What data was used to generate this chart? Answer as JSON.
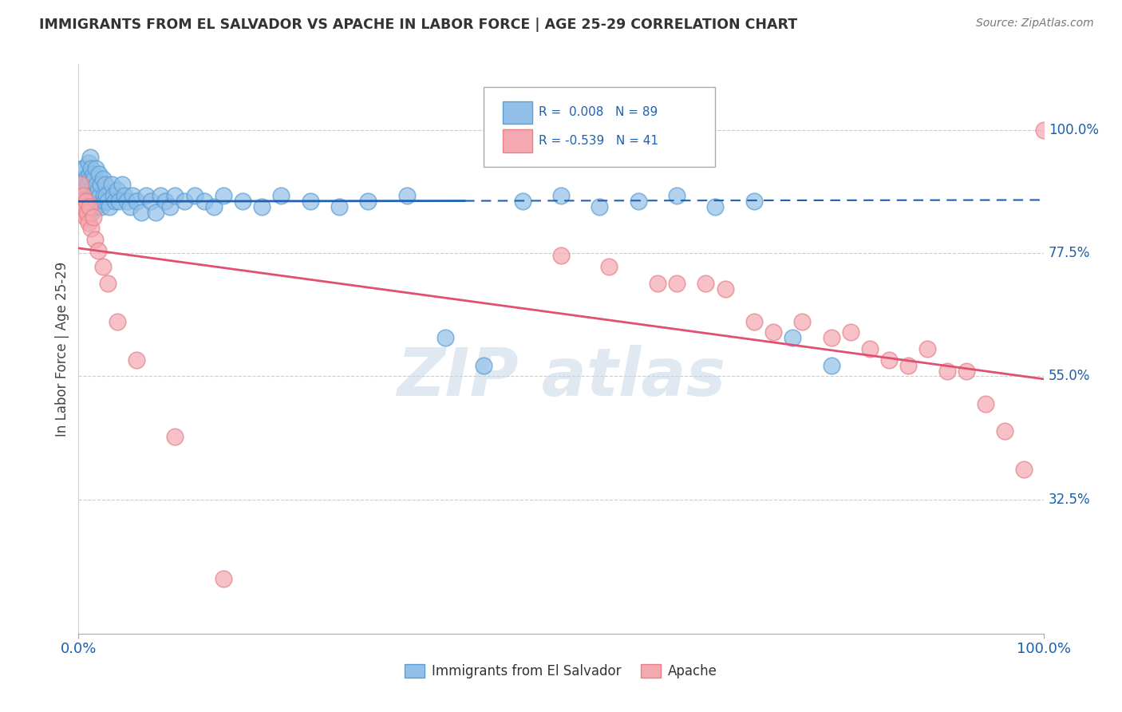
{
  "title": "IMMIGRANTS FROM EL SALVADOR VS APACHE IN LABOR FORCE | AGE 25-29 CORRELATION CHART",
  "source": "Source: ZipAtlas.com",
  "ylabel": "In Labor Force | Age 25-29",
  "xlim": [
    0.0,
    1.0
  ],
  "ylim": [
    0.08,
    1.12
  ],
  "yticks": [
    0.325,
    0.55,
    0.775,
    1.0
  ],
  "ytick_labels": [
    "32.5%",
    "55.0%",
    "77.5%",
    "100.0%"
  ],
  "xtick_labels": [
    "0.0%",
    "100.0%"
  ],
  "legend_blue_text": "R =  0.008   N = 89",
  "legend_pink_text": "R = -0.539   N = 41",
  "legend_label_blue": "Immigrants from El Salvador",
  "legend_label_pink": "Apache",
  "blue_color": "#92c0e8",
  "pink_color": "#f4a8b0",
  "blue_edge_color": "#5a9fd4",
  "pink_edge_color": "#e8808a",
  "blue_line_color": "#2060b0",
  "pink_line_color": "#e05070",
  "background_color": "#ffffff",
  "blue_x": [
    0.002,
    0.003,
    0.004,
    0.004,
    0.005,
    0.005,
    0.006,
    0.006,
    0.007,
    0.007,
    0.008,
    0.008,
    0.009,
    0.009,
    0.01,
    0.01,
    0.01,
    0.011,
    0.011,
    0.012,
    0.012,
    0.013,
    0.013,
    0.014,
    0.014,
    0.015,
    0.015,
    0.016,
    0.016,
    0.017,
    0.017,
    0.018,
    0.018,
    0.019,
    0.019,
    0.02,
    0.021,
    0.022,
    0.023,
    0.024,
    0.025,
    0.026,
    0.027,
    0.028,
    0.029,
    0.03,
    0.032,
    0.034,
    0.036,
    0.038,
    0.04,
    0.042,
    0.045,
    0.048,
    0.05,
    0.053,
    0.056,
    0.06,
    0.065,
    0.07,
    0.075,
    0.08,
    0.085,
    0.09,
    0.095,
    0.1,
    0.11,
    0.12,
    0.13,
    0.14,
    0.15,
    0.17,
    0.19,
    0.21,
    0.24,
    0.27,
    0.3,
    0.34,
    0.38,
    0.42,
    0.46,
    0.5,
    0.54,
    0.58,
    0.62,
    0.66,
    0.7,
    0.74,
    0.78
  ],
  "blue_y": [
    0.88,
    0.9,
    0.93,
    0.86,
    0.91,
    0.87,
    0.89,
    0.93,
    0.88,
    0.85,
    0.91,
    0.87,
    0.9,
    0.86,
    0.94,
    0.9,
    0.86,
    0.92,
    0.88,
    0.95,
    0.91,
    0.87,
    0.93,
    0.89,
    0.85,
    0.92,
    0.88,
    0.86,
    0.91,
    0.89,
    0.87,
    0.93,
    0.88,
    0.9,
    0.86,
    0.89,
    0.92,
    0.88,
    0.9,
    0.86,
    0.91,
    0.88,
    0.87,
    0.9,
    0.88,
    0.87,
    0.86,
    0.9,
    0.88,
    0.87,
    0.89,
    0.87,
    0.9,
    0.88,
    0.87,
    0.86,
    0.88,
    0.87,
    0.85,
    0.88,
    0.87,
    0.85,
    0.88,
    0.87,
    0.86,
    0.88,
    0.87,
    0.88,
    0.87,
    0.86,
    0.88,
    0.87,
    0.86,
    0.88,
    0.87,
    0.86,
    0.87,
    0.88,
    0.62,
    0.57,
    0.87,
    0.88,
    0.86,
    0.87,
    0.88,
    0.86,
    0.87,
    0.62,
    0.57
  ],
  "pink_x": [
    0.002,
    0.003,
    0.004,
    0.005,
    0.006,
    0.007,
    0.008,
    0.009,
    0.01,
    0.011,
    0.013,
    0.015,
    0.017,
    0.02,
    0.025,
    0.03,
    0.04,
    0.06,
    0.1,
    0.15,
    0.5,
    0.55,
    0.6,
    0.62,
    0.65,
    0.67,
    0.7,
    0.72,
    0.75,
    0.78,
    0.8,
    0.82,
    0.84,
    0.86,
    0.88,
    0.9,
    0.92,
    0.94,
    0.96,
    0.98,
    1.0
  ],
  "pink_y": [
    0.9,
    0.87,
    0.85,
    0.88,
    0.86,
    0.84,
    0.87,
    0.85,
    0.83,
    0.86,
    0.82,
    0.84,
    0.8,
    0.78,
    0.75,
    0.72,
    0.65,
    0.58,
    0.44,
    0.18,
    0.77,
    0.75,
    0.72,
    0.72,
    0.72,
    0.71,
    0.65,
    0.63,
    0.65,
    0.62,
    0.63,
    0.6,
    0.58,
    0.57,
    0.6,
    0.56,
    0.56,
    0.5,
    0.45,
    0.38,
    1.0
  ]
}
